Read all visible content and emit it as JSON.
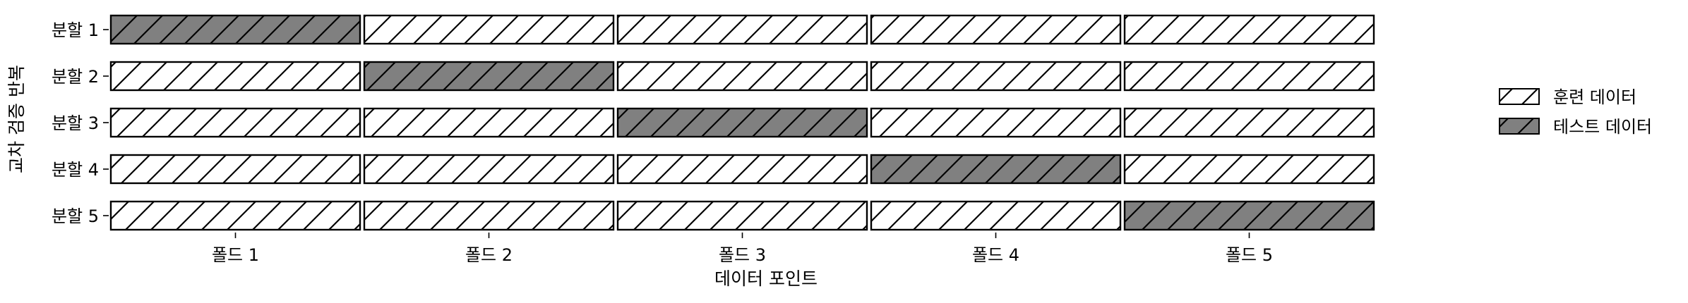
{
  "chart_data": {
    "type": "bar",
    "orientation": "horizontal-stacked",
    "xlabel": "데이터 포인트",
    "ylabel": "교차 검증 반복",
    "categories": [
      "분할 1",
      "분할 2",
      "분할 3",
      "분할 4",
      "분할 5"
    ],
    "folds": [
      "폴드 1",
      "폴드 2",
      "폴드 3",
      "폴드 4",
      "폴드 5"
    ],
    "values_per_fold": [
      1,
      1,
      1,
      1,
      1
    ],
    "test_fold_index": [
      0,
      1,
      2,
      3,
      4
    ],
    "series": [
      {
        "name": "훈련 데이터",
        "color": "#ffffff",
        "hatch": "//"
      },
      {
        "name": "테스트 데이터",
        "color": "#808080",
        "hatch": "//"
      }
    ],
    "legend_position": "right",
    "grid": false
  }
}
